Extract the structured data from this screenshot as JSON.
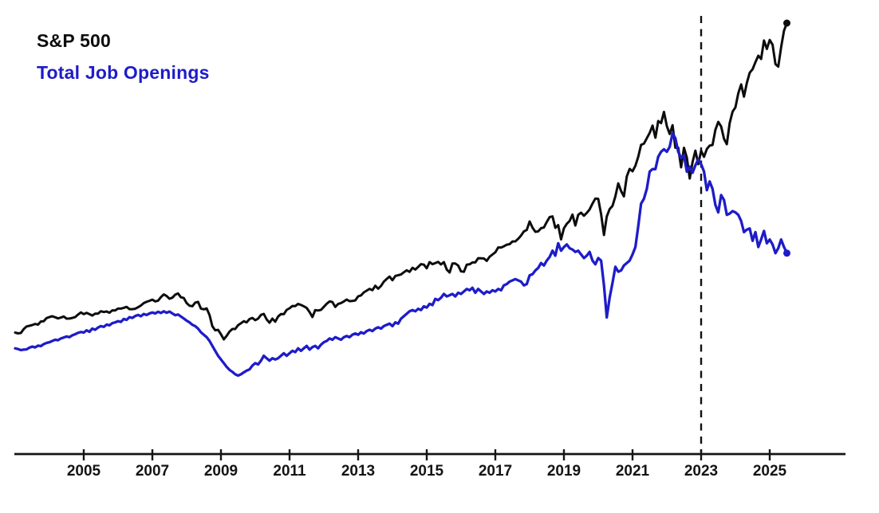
{
  "legend": {
    "series1_label": "S&P 500",
    "series2_label": "Total Job Openings"
  },
  "colors": {
    "sp500": "#0d0d0d",
    "job_openings": "#1e1cc8",
    "axis": "#141414",
    "background": "#ffffff"
  },
  "chart_data": {
    "type": "line",
    "title": "",
    "legend_position": "top-left",
    "grid": false,
    "y_axis_visible": false,
    "y_scaling_note": "no y-axis shown; each series independently scaled",
    "x_start_year": 2003.0,
    "x_step_years": 0.0833333,
    "x_end_year": 2025.5,
    "x_tick_labels": [
      "2005",
      "2007",
      "2009",
      "2011",
      "2013",
      "2015",
      "2017",
      "2019",
      "2021",
      "2023",
      "2025"
    ],
    "x_tick_years": [
      2005,
      2007,
      2009,
      2011,
      2013,
      2015,
      2017,
      2019,
      2021,
      2023,
      2025
    ],
    "vertical_marker": {
      "x_year": 2023.0,
      "style": "dashed"
    },
    "series": [
      {
        "name": "S&P 500",
        "color": "#0d0d0d",
        "units": "index level (approx. monthly)",
        "values": [
          856,
          841,
          848,
          917,
          964,
          975,
          990,
          1008,
          996,
          1051,
          1058,
          1112,
          1131,
          1145,
          1126,
          1107,
          1121,
          1141,
          1102,
          1104,
          1115,
          1130,
          1174,
          1212,
          1181,
          1204,
          1181,
          1157,
          1192,
          1191,
          1234,
          1220,
          1229,
          1207,
          1249,
          1248,
          1280,
          1281,
          1295,
          1311,
          1270,
          1270,
          1277,
          1304,
          1336,
          1378,
          1401,
          1418,
          1438,
          1407,
          1421,
          1482,
          1531,
          1503,
          1455,
          1474,
          1527,
          1549,
          1481,
          1468,
          1378,
          1331,
          1323,
          1386,
          1400,
          1280,
          1267,
          1283,
          1166,
          969,
          896,
          903,
          826,
          735,
          798,
          873,
          919,
          919,
          987,
          1021,
          1057,
          1036,
          1096,
          1115,
          1074,
          1104,
          1169,
          1187,
          1089,
          1031,
          1102,
          1049,
          1141,
          1183,
          1181,
          1258,
          1286,
          1327,
          1326,
          1364,
          1345,
          1321,
          1292,
          1219,
          1131,
          1253,
          1247,
          1258,
          1312,
          1366,
          1408,
          1398,
          1310,
          1362,
          1379,
          1407,
          1441,
          1412,
          1416,
          1426,
          1498,
          1515,
          1569,
          1598,
          1631,
          1606,
          1686,
          1633,
          1682,
          1757,
          1806,
          1848,
          1783,
          1859,
          1872,
          1884,
          1924,
          1960,
          1931,
          2003,
          1972,
          2018,
          2068,
          2059,
          1995,
          2105,
          2068,
          2086,
          2107,
          2063,
          2104,
          1972,
          1920,
          2079,
          2080,
          2044,
          1940,
          1932,
          2060,
          2065,
          2097,
          2099,
          2174,
          2171,
          2168,
          2126,
          2199,
          2239,
          2279,
          2364,
          2363,
          2384,
          2412,
          2423,
          2470,
          2472,
          2519,
          2575,
          2648,
          2674,
          2824,
          2714,
          2641,
          2648,
          2705,
          2718,
          2816,
          2902,
          2914,
          2712,
          2760,
          2507,
          2704,
          2784,
          2834,
          2946,
          2752,
          2942,
          2980,
          2926,
          2977,
          3038,
          3141,
          3231,
          3226,
          2954,
          2585,
          2912,
          3044,
          3100,
          3271,
          3500,
          3363,
          3270,
          3622,
          3756,
          3714,
          3811,
          3973,
          4181,
          4204,
          4298,
          4395,
          4523,
          4308,
          4605,
          4567,
          4766,
          4516,
          4374,
          4530,
          4132,
          4132,
          3785,
          4130,
          3955,
          3586,
          3872,
          4080,
          3840,
          4077,
          3970,
          4109,
          4169,
          4180,
          4450,
          4589,
          4508,
          4288,
          4194,
          4568,
          4770,
          4846,
          5096,
          5254,
          5036,
          5278,
          5460,
          5522,
          5648,
          5762,
          5705,
          6032,
          5882,
          6041,
          5955,
          5612,
          5569,
          5912,
          6205,
          6339
        ]
      },
      {
        "name": "Total Job Openings",
        "color": "#1e1cc8",
        "units": "thousands (approx. monthly)",
        "values": [
          3350,
          3320,
          3280,
          3300,
          3310,
          3380,
          3420,
          3390,
          3460,
          3440,
          3520,
          3570,
          3600,
          3650,
          3700,
          3680,
          3750,
          3790,
          3830,
          3800,
          3880,
          3920,
          3980,
          4010,
          3990,
          4080,
          4020,
          4150,
          4100,
          4190,
          4250,
          4220,
          4310,
          4280,
          4370,
          4400,
          4450,
          4420,
          4540,
          4500,
          4610,
          4580,
          4660,
          4700,
          4650,
          4740,
          4700,
          4760,
          4800,
          4760,
          4830,
          4780,
          4850,
          4790,
          4840,
          4760,
          4690,
          4720,
          4640,
          4560,
          4470,
          4400,
          4300,
          4250,
          4150,
          4000,
          3900,
          3800,
          3650,
          3450,
          3250,
          3050,
          2900,
          2750,
          2600,
          2480,
          2400,
          2300,
          2250,
          2300,
          2380,
          2450,
          2500,
          2650,
          2750,
          2700,
          2850,
          3050,
          2950,
          2850,
          2950,
          2900,
          2950,
          3050,
          3150,
          3050,
          3150,
          3250,
          3200,
          3350,
          3250,
          3350,
          3450,
          3300,
          3400,
          3450,
          3350,
          3500,
          3600,
          3650,
          3750,
          3700,
          3800,
          3750,
          3700,
          3800,
          3850,
          3800,
          3900,
          3950,
          3900,
          4000,
          3950,
          4050,
          4100,
          4050,
          4150,
          4200,
          4150,
          4250,
          4300,
          4350,
          4250,
          4400,
          4350,
          4550,
          4650,
          4750,
          4850,
          4900,
          4850,
          4950,
          4900,
          5050,
          5000,
          5150,
          5100,
          5350,
          5300,
          5400,
          5550,
          5450,
          5500,
          5550,
          5450,
          5600,
          5550,
          5650,
          5750,
          5700,
          5800,
          5600,
          5750,
          5650,
          5550,
          5650,
          5600,
          5700,
          5650,
          5750,
          5700,
          5900,
          5950,
          6050,
          6100,
          6150,
          6100,
          6050,
          5900,
          5950,
          6300,
          6350,
          6500,
          6600,
          6800,
          6700,
          6900,
          7050,
          7300,
          7100,
          7600,
          7300,
          7450,
          7550,
          7400,
          7350,
          7250,
          7300,
          7150,
          7000,
          7100,
          7250,
          6900,
          6750,
          7000,
          6900,
          5900,
          4600,
          5400,
          6000,
          6650,
          6450,
          6500,
          6700,
          6800,
          6900,
          7150,
          7450,
          8300,
          9200,
          9400,
          9800,
          10500,
          10600,
          10600,
          11100,
          11300,
          11400,
          11300,
          11500,
          12050,
          11850,
          11300,
          11050,
          11150,
          10500,
          10700,
          10450,
          10750,
          11000,
          10800,
          10500,
          9750,
          10100,
          9800,
          9150,
          8850,
          9550,
          9350,
          8750,
          8800,
          8900,
          8850,
          8750,
          8500,
          8050,
          8150,
          8200,
          7700,
          8050,
          7450,
          7750,
          8100,
          7600,
          7750,
          7550,
          7200,
          7400,
          7750,
          7450,
          7200
        ]
      }
    ]
  }
}
